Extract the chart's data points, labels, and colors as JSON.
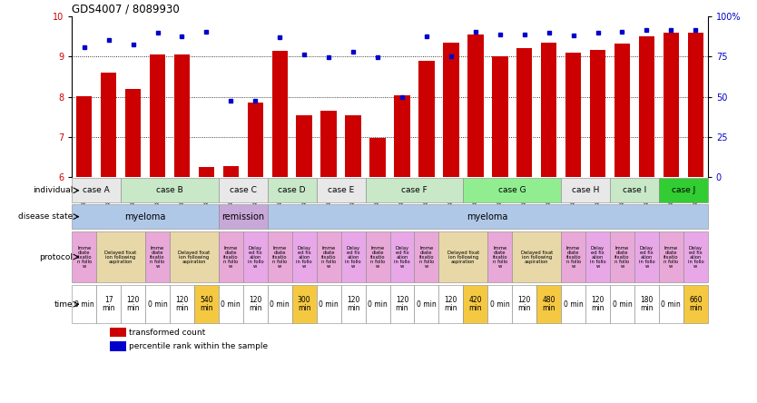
{
  "title": "GDS4007 / 8089930",
  "samples": [
    "GSM879509",
    "GSM879510",
    "GSM879511",
    "GSM879512",
    "GSM879513",
    "GSM879514",
    "GSM879517",
    "GSM879518",
    "GSM879519",
    "GSM879520",
    "GSM879525",
    "GSM879526",
    "GSM879527",
    "GSM879528",
    "GSM879529",
    "GSM879530",
    "GSM879531",
    "GSM879532",
    "GSM879533",
    "GSM879534",
    "GSM879535",
    "GSM879536",
    "GSM879537",
    "GSM879538",
    "GSM879539",
    "GSM879540"
  ],
  "bar_values": [
    8.02,
    8.6,
    8.2,
    9.05,
    9.05,
    6.25,
    6.27,
    7.85,
    9.13,
    7.53,
    7.65,
    7.53,
    6.98,
    8.04,
    8.88,
    9.35,
    9.55,
    9.0,
    9.2,
    9.35,
    9.1,
    9.15,
    9.32,
    9.5,
    9.6,
    9.58
  ],
  "dot_left_vals": [
    9.23,
    9.42,
    9.3,
    9.58,
    9.5,
    9.62,
    7.9,
    7.9,
    9.48,
    9.05,
    8.98,
    9.12,
    8.97,
    8.0,
    9.5,
    9.0,
    9.62,
    9.55,
    9.55,
    9.6,
    9.52,
    9.6,
    9.62,
    9.65,
    9.65,
    9.65
  ],
  "bar_color": "#CC0000",
  "dot_color": "#0000CC",
  "ylim_left": [
    6,
    10
  ],
  "ylim_right": [
    0,
    100
  ],
  "yticks_left": [
    6,
    7,
    8,
    9,
    10
  ],
  "yticks_right": [
    0,
    25,
    50,
    75,
    100
  ],
  "ytick_right_labels": [
    "0",
    "25",
    "50",
    "75",
    "100%"
  ],
  "individual_cases": [
    {
      "label": "case A",
      "start": 0,
      "end": 2,
      "color": "#e8e8e8"
    },
    {
      "label": "case B",
      "start": 2,
      "end": 6,
      "color": "#c8e8c8"
    },
    {
      "label": "case C",
      "start": 6,
      "end": 8,
      "color": "#e8e8e8"
    },
    {
      "label": "case D",
      "start": 8,
      "end": 10,
      "color": "#c8e8c8"
    },
    {
      "label": "case E",
      "start": 10,
      "end": 12,
      "color": "#e8e8e8"
    },
    {
      "label": "case F",
      "start": 12,
      "end": 16,
      "color": "#c8e8c8"
    },
    {
      "label": "case G",
      "start": 16,
      "end": 20,
      "color": "#90ee90"
    },
    {
      "label": "case H",
      "start": 20,
      "end": 22,
      "color": "#e8e8e8"
    },
    {
      "label": "case I",
      "start": 22,
      "end": 24,
      "color": "#c8e8c8"
    },
    {
      "label": "case J",
      "start": 24,
      "end": 26,
      "color": "#32cd32"
    }
  ],
  "disease_state": [
    {
      "label": "myeloma",
      "start": 0,
      "end": 6,
      "color": "#b0c8e8"
    },
    {
      "label": "remission",
      "start": 6,
      "end": 8,
      "color": "#c8a8d8"
    },
    {
      "label": "myeloma",
      "start": 8,
      "end": 26,
      "color": "#b0c8e8"
    }
  ],
  "protocols": [
    {
      "label": "Imme\ndiate\nfixatio\nn follo\nw",
      "start": 0,
      "end": 1,
      "color": "#e8a8d8"
    },
    {
      "label": "Delayed fixat\nion following\naspiration",
      "start": 1,
      "end": 3,
      "color": "#e8d8a8"
    },
    {
      "label": "Imme\ndiate\nfixatio\nn follo\nw",
      "start": 3,
      "end": 4,
      "color": "#e8a8d8"
    },
    {
      "label": "Delayed fixat\nion following\naspiration",
      "start": 4,
      "end": 6,
      "color": "#e8d8a8"
    },
    {
      "label": "Imme\ndiate\nfixatio\nn follo\nw",
      "start": 6,
      "end": 7,
      "color": "#e8a8d8"
    },
    {
      "label": "Delay\ned fix\nation\nin follo\nw",
      "start": 7,
      "end": 8,
      "color": "#e8a8e8"
    },
    {
      "label": "Imme\ndiate\nfixatio\nn follo\nw",
      "start": 8,
      "end": 9,
      "color": "#e8a8d8"
    },
    {
      "label": "Delay\ned fix\nation\nin follo\nw",
      "start": 9,
      "end": 10,
      "color": "#e8a8e8"
    },
    {
      "label": "Imme\ndiate\nfixatio\nn follo\nw",
      "start": 10,
      "end": 11,
      "color": "#e8a8d8"
    },
    {
      "label": "Delay\ned fix\nation\nin follo\nw",
      "start": 11,
      "end": 12,
      "color": "#e8a8e8"
    },
    {
      "label": "Imme\ndiate\nfixatio\nn follo\nw",
      "start": 12,
      "end": 13,
      "color": "#e8a8d8"
    },
    {
      "label": "Delay\ned fix\nation\nin follo\nw",
      "start": 13,
      "end": 14,
      "color": "#e8a8e8"
    },
    {
      "label": "Imme\ndiate\nfixatio\nn follo\nw",
      "start": 14,
      "end": 15,
      "color": "#e8a8d8"
    },
    {
      "label": "Delayed fixat\nion following\naspiration",
      "start": 15,
      "end": 17,
      "color": "#e8d8a8"
    },
    {
      "label": "Imme\ndiate\nfixatio\nn follo\nw",
      "start": 17,
      "end": 18,
      "color": "#e8a8d8"
    },
    {
      "label": "Delayed fixat\nion following\naspiration",
      "start": 18,
      "end": 20,
      "color": "#e8d8a8"
    },
    {
      "label": "Imme\ndiate\nfixatio\nn follo\nw",
      "start": 20,
      "end": 21,
      "color": "#e8a8d8"
    },
    {
      "label": "Delay\ned fix\nation\nin follo\nw",
      "start": 21,
      "end": 22,
      "color": "#e8a8e8"
    },
    {
      "label": "Imme\ndiate\nfixatio\nn follo\nw",
      "start": 22,
      "end": 23,
      "color": "#e8a8d8"
    },
    {
      "label": "Delay\ned fix\nation\nin follo\nw",
      "start": 23,
      "end": 24,
      "color": "#e8a8e8"
    },
    {
      "label": "Imme\ndiate\nfixatio\nn follo\nw",
      "start": 24,
      "end": 25,
      "color": "#e8a8d8"
    },
    {
      "label": "Delay\ned fix\nation\nin follo\nw",
      "start": 25,
      "end": 26,
      "color": "#e8a8e8"
    }
  ],
  "times": [
    {
      "label": "0 min",
      "start": 0,
      "end": 1,
      "color": "#ffffff"
    },
    {
      "label": "17\nmin",
      "start": 1,
      "end": 2,
      "color": "#ffffff"
    },
    {
      "label": "120\nmin",
      "start": 2,
      "end": 3,
      "color": "#ffffff"
    },
    {
      "label": "0 min",
      "start": 3,
      "end": 4,
      "color": "#ffffff"
    },
    {
      "label": "120\nmin",
      "start": 4,
      "end": 5,
      "color": "#ffffff"
    },
    {
      "label": "540\nmin",
      "start": 5,
      "end": 6,
      "color": "#f5c842"
    },
    {
      "label": "0 min",
      "start": 6,
      "end": 7,
      "color": "#ffffff"
    },
    {
      "label": "120\nmin",
      "start": 7,
      "end": 8,
      "color": "#ffffff"
    },
    {
      "label": "0 min",
      "start": 8,
      "end": 9,
      "color": "#ffffff"
    },
    {
      "label": "300\nmin",
      "start": 9,
      "end": 10,
      "color": "#f5c842"
    },
    {
      "label": "0 min",
      "start": 10,
      "end": 11,
      "color": "#ffffff"
    },
    {
      "label": "120\nmin",
      "start": 11,
      "end": 12,
      "color": "#ffffff"
    },
    {
      "label": "0 min",
      "start": 12,
      "end": 13,
      "color": "#ffffff"
    },
    {
      "label": "120\nmin",
      "start": 13,
      "end": 14,
      "color": "#ffffff"
    },
    {
      "label": "0 min",
      "start": 14,
      "end": 15,
      "color": "#ffffff"
    },
    {
      "label": "120\nmin",
      "start": 15,
      "end": 16,
      "color": "#ffffff"
    },
    {
      "label": "420\nmin",
      "start": 16,
      "end": 17,
      "color": "#f5c842"
    },
    {
      "label": "0 min",
      "start": 17,
      "end": 18,
      "color": "#ffffff"
    },
    {
      "label": "120\nmin",
      "start": 18,
      "end": 19,
      "color": "#ffffff"
    },
    {
      "label": "480\nmin",
      "start": 19,
      "end": 20,
      "color": "#f5c842"
    },
    {
      "label": "0 min",
      "start": 20,
      "end": 21,
      "color": "#ffffff"
    },
    {
      "label": "120\nmin",
      "start": 21,
      "end": 22,
      "color": "#ffffff"
    },
    {
      "label": "0 min",
      "start": 22,
      "end": 23,
      "color": "#ffffff"
    },
    {
      "label": "180\nmin",
      "start": 23,
      "end": 24,
      "color": "#ffffff"
    },
    {
      "label": "0 min",
      "start": 24,
      "end": 25,
      "color": "#ffffff"
    },
    {
      "label": "660\nmin",
      "start": 25,
      "end": 26,
      "color": "#f5c842"
    }
  ],
  "row_labels": [
    "individual",
    "disease state",
    "protocol",
    "time"
  ],
  "legend_bar": "transformed count",
  "legend_dot": "percentile rank within the sample"
}
